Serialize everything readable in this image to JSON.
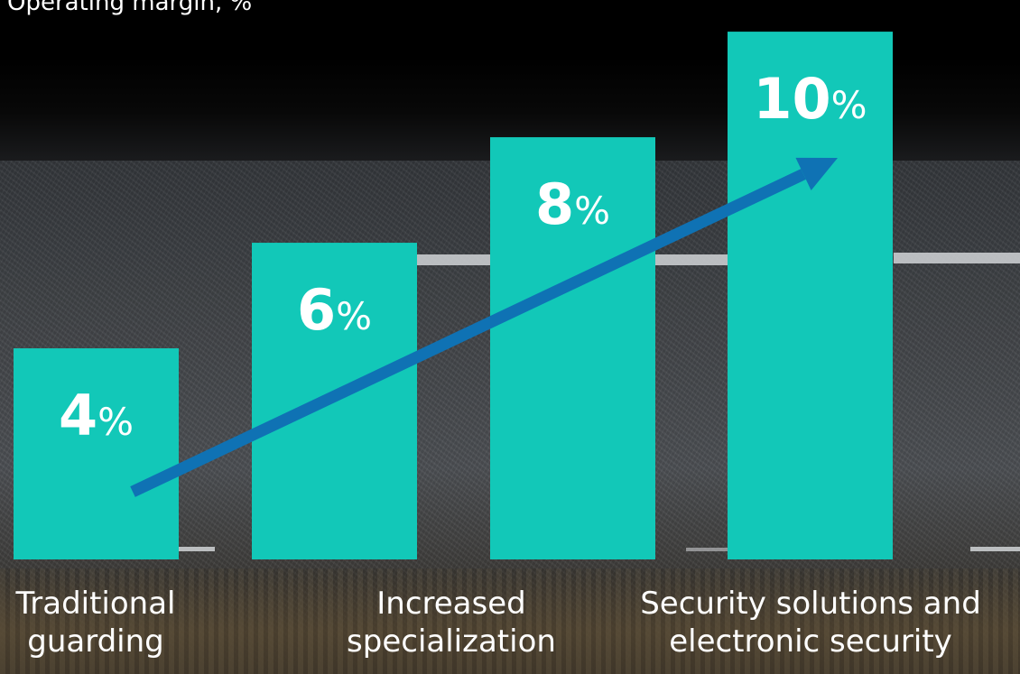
{
  "chart_data": {
    "type": "bar",
    "title": "Operating margin, %",
    "categories": [
      "",
      "",
      "",
      ""
    ],
    "values": [
      4,
      6,
      8,
      10
    ],
    "value_suffix": "%",
    "bar_color": "#12c8b8",
    "trend_arrow_color": "#0f72b4",
    "ylim": [
      0,
      10.6
    ],
    "grid": false,
    "legend": "none",
    "category_labels": [
      {
        "text": "Traditional\nguarding",
        "under": "first bar"
      },
      {
        "text": "Increased\nspecialization",
        "under": "between second and third bars"
      },
      {
        "text": "Security solutions and\nelectronic security",
        "under": "fourth bar"
      }
    ]
  },
  "background": {
    "top_color": "#000000",
    "road_color": "#45484c"
  }
}
